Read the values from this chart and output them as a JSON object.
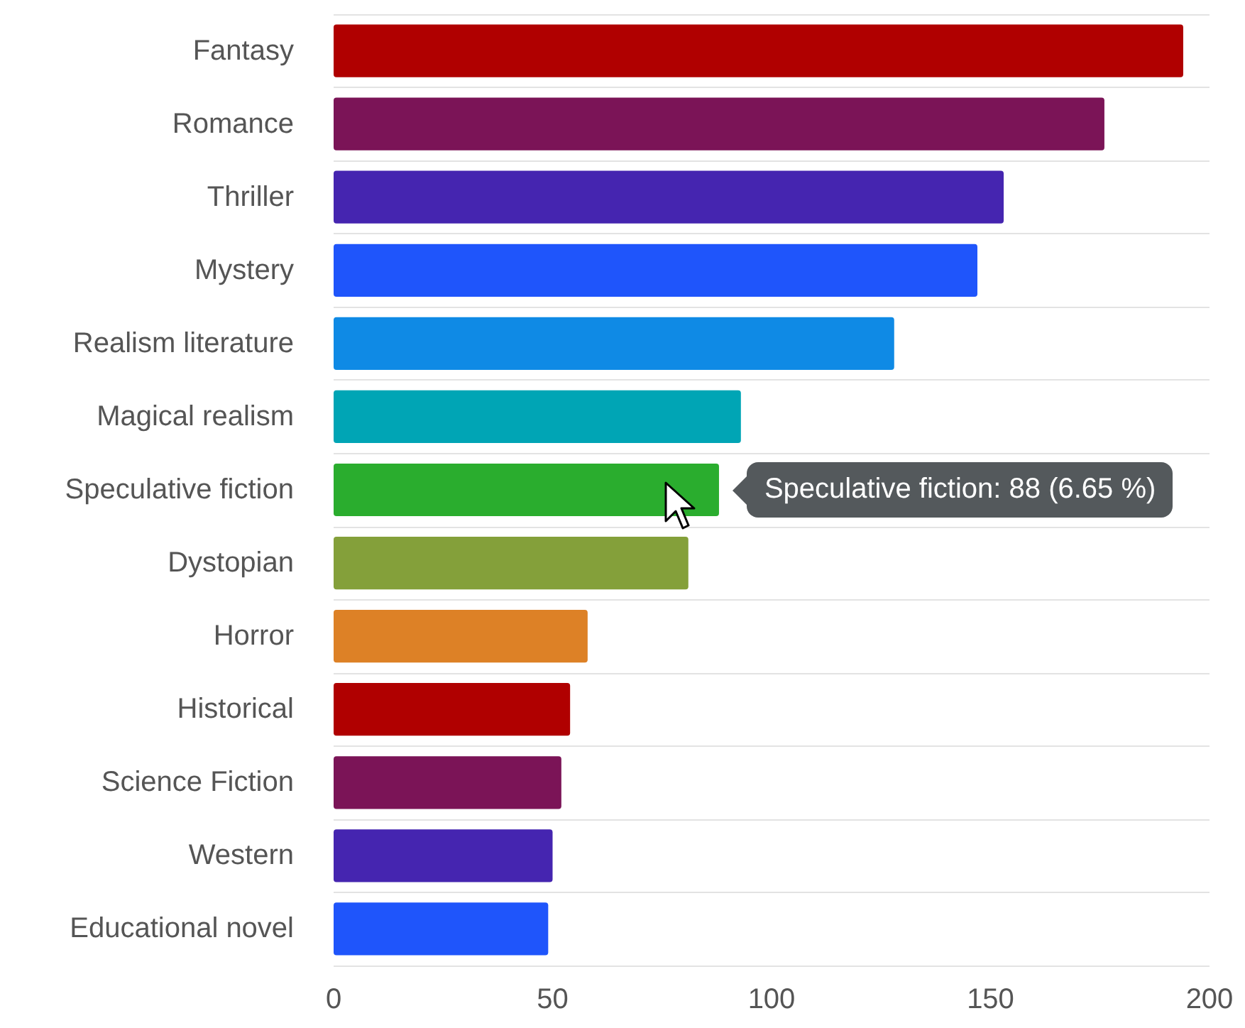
{
  "chart_data": {
    "type": "bar",
    "orientation": "horizontal",
    "categories": [
      "Fantasy",
      "Romance",
      "Thriller",
      "Mystery",
      "Realism literature",
      "Magical realism",
      "Speculative fiction",
      "Dystopian",
      "Horror",
      "Historical",
      "Science Fiction",
      "Western",
      "Educational novel"
    ],
    "values": [
      194,
      176,
      153,
      147,
      128,
      93,
      88,
      81,
      58,
      54,
      52,
      50,
      49
    ],
    "colors": [
      "#b00000",
      "#7b1457",
      "#4525b0",
      "#1f55fb",
      "#0f8ae5",
      "#00a5b5",
      "#2aad2e",
      "#84a03a",
      "#dd8126",
      "#b00000",
      "#7b1457",
      "#4525b0",
      "#1f55fb"
    ],
    "xlim": [
      0,
      200
    ],
    "xticks": [
      0,
      50,
      100,
      150,
      200
    ],
    "grid": "y",
    "annotations": [
      {
        "text": "Speculative fiction: 88 (6.65 %)",
        "x": 88,
        "y": "Speculative fiction"
      }
    ]
  }
}
